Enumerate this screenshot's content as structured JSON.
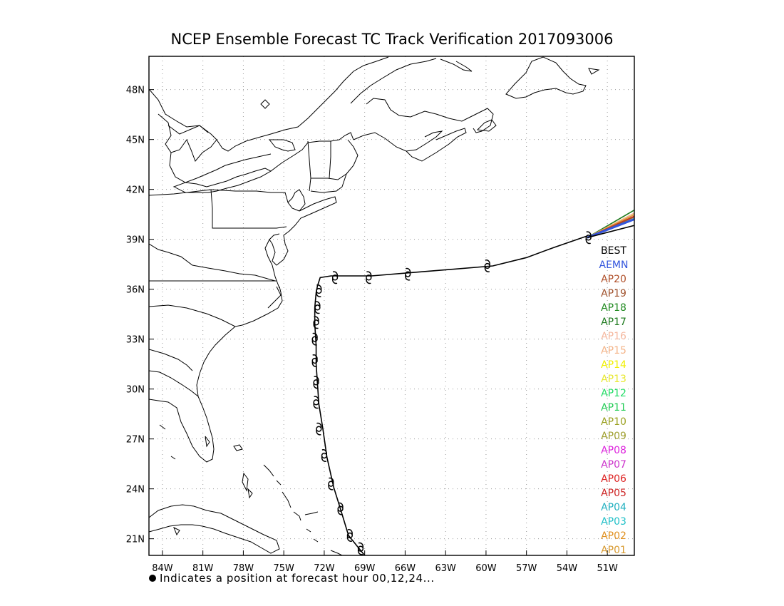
{
  "title": "NCEP Ensemble Forecast TC Track Verification 2017093006",
  "footnote": "Indicates a position at forecast hour 00,12,24...",
  "map": {
    "lon_range": [
      -85,
      -49
    ],
    "lat_range": [
      20,
      50
    ],
    "lon_ticks": [
      "84W",
      "81W",
      "78W",
      "75W",
      "72W",
      "69W",
      "66W",
      "63W",
      "60W",
      "57W",
      "54W",
      "51W"
    ],
    "lat_ticks": [
      "48N",
      "45N",
      "42N",
      "39N",
      "36N",
      "33N",
      "30N",
      "27N",
      "24N",
      "21N"
    ],
    "grid": true
  },
  "legend": [
    {
      "label": "BEST",
      "color": "#000000"
    },
    {
      "label": "AEMN",
      "color": "#3355dd"
    },
    {
      "label": "AP20",
      "color": "#b0502a"
    },
    {
      "label": "AP19",
      "color": "#a0522d"
    },
    {
      "label": "AP18",
      "color": "#228b22"
    },
    {
      "label": "AP17",
      "color": "#1e7a1e"
    },
    {
      "label": "AP16",
      "color": "#f5b9a0"
    },
    {
      "label": "AP15",
      "color": "#f4b488"
    },
    {
      "label": "AP14",
      "color": "#f0f000"
    },
    {
      "label": "AP13",
      "color": "#e8e830"
    },
    {
      "label": "AP12",
      "color": "#22dd66"
    },
    {
      "label": "AP11",
      "color": "#22cc55"
    },
    {
      "label": "AP10",
      "color": "#9aa020"
    },
    {
      "label": "AP09",
      "color": "#a0a030"
    },
    {
      "label": "AP08",
      "color": "#dd22dd"
    },
    {
      "label": "AP07",
      "color": "#cc33cc"
    },
    {
      "label": "AP06",
      "color": "#dd2222"
    },
    {
      "label": "AP05",
      "color": "#cc2222"
    },
    {
      "label": "AP04",
      "color": "#22b0c0"
    },
    {
      "label": "AP03",
      "color": "#20c0c8"
    },
    {
      "label": "AP02",
      "color": "#e09020"
    },
    {
      "label": "AP01",
      "color": "#d89a30"
    }
  ],
  "best_track": {
    "lon": [
      -69.0,
      -69.5,
      -70.2,
      -70.8,
      -71.3,
      -71.8,
      -72.1,
      -72.4,
      -72.5,
      -72.6,
      -72.6,
      -72.7,
      -72.7,
      -72.6,
      -72.5,
      -72.3,
      -71.5,
      -68.5,
      -65.5,
      -59.5,
      -57.0,
      -55.0,
      -52.5
    ],
    "lat": [
      20.0,
      20.5,
      21.2,
      22.8,
      24.1,
      25.9,
      27.6,
      29.1,
      30.3,
      31.5,
      32.6,
      33.9,
      34.9,
      35.8,
      36.2,
      36.7,
      36.8,
      36.8,
      37.0,
      37.4,
      37.9,
      38.5,
      39.2
    ]
  },
  "best_markers": {
    "lon": [
      -69.3,
      -70.1,
      -70.8,
      -71.5,
      -72.0,
      -72.4,
      -72.6,
      -72.6,
      -72.7,
      -72.7,
      -72.6,
      -72.5,
      -72.4,
      -71.2,
      -68.7,
      -65.8,
      -59.9,
      -52.4
    ],
    "lat": [
      20.4,
      21.2,
      22.8,
      24.3,
      26.0,
      27.6,
      29.2,
      30.4,
      31.7,
      33.0,
      34.0,
      34.9,
      35.9,
      36.7,
      36.7,
      36.9,
      37.4,
      39.1
    ]
  },
  "ensemble_tracks": [
    {
      "label": "AP17",
      "lon": [
        -52.5,
        -48.7
      ],
      "lat": [
        39.1,
        40.9
      ]
    },
    {
      "label": "AP15",
      "lon": [
        -52.5,
        -48.7
      ],
      "lat": [
        39.1,
        40.7
      ]
    },
    {
      "label": "AP01",
      "lon": [
        -52.5,
        -48.7
      ],
      "lat": [
        39.1,
        40.6
      ]
    },
    {
      "label": "AP06",
      "lon": [
        -52.5,
        -48.7
      ],
      "lat": [
        39.1,
        40.5
      ]
    },
    {
      "label": "AP19",
      "lon": [
        -52.5,
        -48.7
      ],
      "lat": [
        39.1,
        40.45
      ]
    },
    {
      "label": "AP11",
      "lon": [
        -52.5,
        -48.7
      ],
      "lat": [
        39.1,
        40.35
      ]
    },
    {
      "label": "AEMN",
      "lon": [
        -52.5,
        -48.7
      ],
      "lat": [
        39.1,
        40.3
      ]
    },
    {
      "label": "BEST",
      "lon": [
        -52.5,
        -48.7
      ],
      "lat": [
        39.1,
        39.9
      ]
    }
  ]
}
